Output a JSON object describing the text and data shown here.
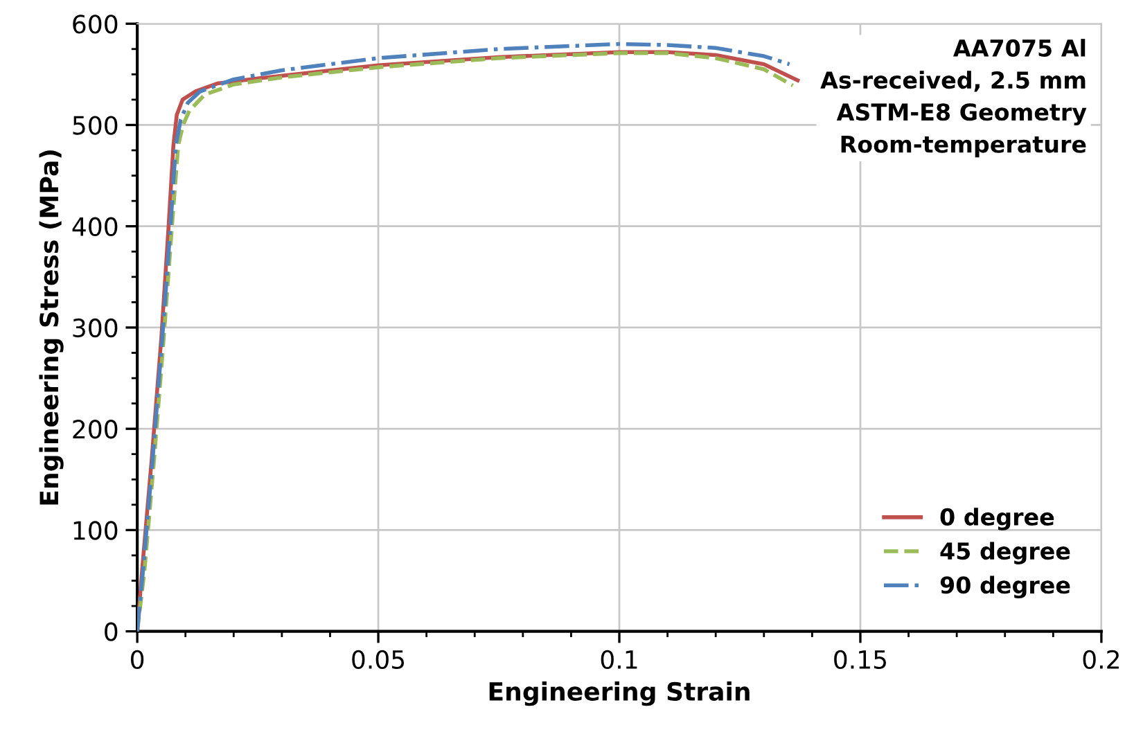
{
  "chart_data": {
    "type": "line",
    "xlabel": "Engineering Strain",
    "ylabel": "Engineering Stress (MPa)",
    "xlim": [
      0,
      0.2
    ],
    "ylim": [
      0,
      600
    ],
    "xticks": [
      0,
      {
        "value": 0.01,
        "label": null
      },
      {
        "value": 0.02,
        "label": null
      },
      {
        "value": 0.03,
        "label": null
      },
      {
        "value": 0.04,
        "label": null
      },
      0.05,
      {
        "value": 0.06,
        "label": null
      },
      {
        "value": 0.07,
        "label": null
      },
      {
        "value": 0.08,
        "label": null
      },
      {
        "value": 0.09,
        "label": null
      },
      0.1,
      {
        "value": 0.11,
        "label": null
      },
      {
        "value": 0.12,
        "label": null
      },
      {
        "value": 0.13,
        "label": null
      },
      {
        "value": 0.14,
        "label": null
      },
      0.15,
      {
        "value": 0.16,
        "label": null
      },
      {
        "value": 0.17,
        "label": null
      },
      {
        "value": 0.18,
        "label": null
      },
      {
        "value": 0.19,
        "label": null
      },
      0.2
    ],
    "yticks": [
      0,
      {
        "value": 25,
        "label": null
      },
      {
        "value": 50,
        "label": null
      },
      {
        "value": 75,
        "label": null
      },
      100,
      {
        "value": 125,
        "label": null
      },
      {
        "value": 150,
        "label": null
      },
      {
        "value": 175,
        "label": null
      },
      200,
      {
        "value": 225,
        "label": null
      },
      {
        "value": 250,
        "label": null
      },
      {
        "value": 275,
        "label": null
      },
      300,
      {
        "value": 325,
        "label": null
      },
      {
        "value": 350,
        "label": null
      },
      {
        "value": 375,
        "label": null
      },
      400,
      {
        "value": 425,
        "label": null
      },
      {
        "value": 450,
        "label": null
      },
      {
        "value": 475,
        "label": null
      },
      500,
      {
        "value": 525,
        "label": null
      },
      {
        "value": 550,
        "label": null
      },
      {
        "value": 575,
        "label": null
      },
      600
    ],
    "grid": true,
    "legend": "bottom right",
    "marker": "none",
    "annotations": [
      "AA7075 Al\nAs-received, 2.5 mm\nASTM-E8 Geometry\nRoom-temperature"
    ],
    "series": [
      {
        "name": "0 degree",
        "color": "#c0504d",
        "line_style": "solid",
        "x": [
          0,
          0.001,
          0.003,
          0.005,
          0.0065,
          0.0075,
          0.0082,
          0.0094,
          0.012,
          0.0166,
          0.025,
          0.05,
          0.075,
          0.1,
          0.11,
          0.12,
          0.13,
          0.137
        ],
        "values": [
          0,
          60,
          170,
          290,
          400,
          480,
          510,
          525,
          533,
          541,
          546,
          559,
          567,
          572,
          572,
          569,
          560,
          544
        ]
      },
      {
        "name": "45 degree",
        "color": "#9bbb59",
        "line_style": "dashed",
        "x": [
          0,
          0.0015,
          0.0035,
          0.0055,
          0.0072,
          0.0085,
          0.0095,
          0.0108,
          0.014,
          0.02,
          0.03,
          0.05,
          0.075,
          0.1,
          0.11,
          0.12,
          0.13,
          0.136
        ],
        "values": [
          0,
          60,
          170,
          290,
          400,
          480,
          500,
          514,
          530,
          540,
          547,
          557,
          566,
          571,
          571,
          566,
          555,
          539
        ]
      },
      {
        "name": "90 degree",
        "color": "#4f81bd",
        "line_style": "dashdot",
        "x": [
          0,
          0.0012,
          0.0032,
          0.0052,
          0.0069,
          0.008,
          0.009,
          0.0105,
          0.013,
          0.02,
          0.03,
          0.05,
          0.075,
          0.1,
          0.11,
          0.12,
          0.13,
          0.1353
        ],
        "values": [
          0,
          60,
          170,
          290,
          400,
          480,
          505,
          522,
          533,
          545,
          554,
          566,
          575,
          580,
          579,
          576,
          568,
          560
        ]
      }
    ]
  }
}
